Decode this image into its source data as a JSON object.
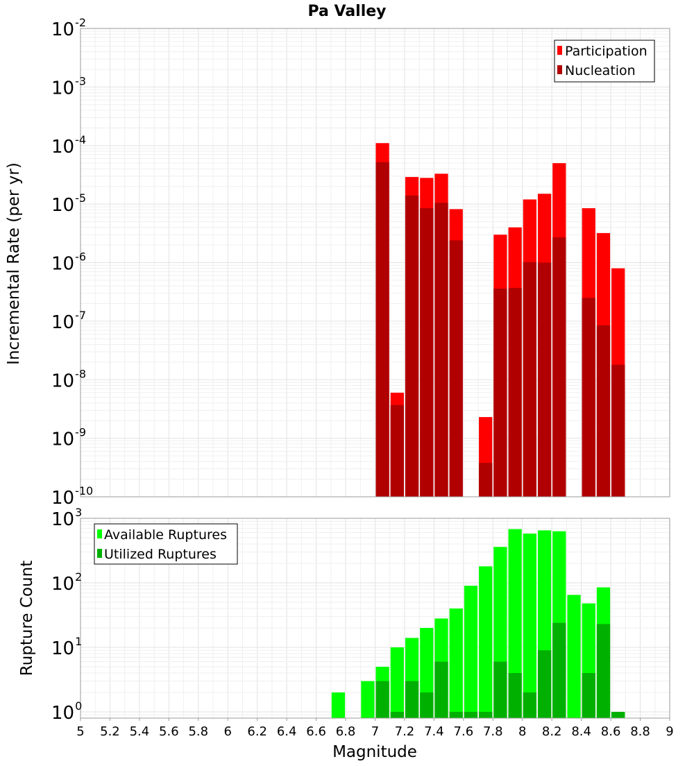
{
  "title": "Pa Valley",
  "colors": {
    "participation": "#ff0000",
    "nucleation": "#b00000",
    "available": "#00ff00",
    "utilized": "#00b000"
  },
  "chart_data": [
    {
      "type": "bar",
      "scale": "log",
      "xlabel": "Magnitude",
      "ylabel": "Incremental Rate (per yr)",
      "xlim": [
        5,
        9
      ],
      "ylim": [
        1e-10,
        0.01
      ],
      "ytick_exponents": [
        "-10",
        "-9",
        "-8",
        "-7",
        "-6",
        "-5",
        "-4",
        "-3",
        "-2"
      ],
      "legend_position": "top-right",
      "bin_width": 0.1,
      "x": [
        7.05,
        7.15,
        7.25,
        7.35,
        7.45,
        7.55,
        7.75,
        7.85,
        7.95,
        8.05,
        8.15,
        8.25,
        8.45,
        8.55,
        8.65
      ],
      "series": [
        {
          "name": "Participation",
          "values": [
            0.00011,
            6e-09,
            2.9e-05,
            2.8e-05,
            3.3e-05,
            8.2e-06,
            2.3e-09,
            3e-06,
            4e-06,
            1.2e-05,
            1.5e-05,
            5e-05,
            8.5e-06,
            3.2e-06,
            8e-07
          ]
        },
        {
          "name": "Nucleation",
          "values": [
            5.2e-05,
            3.7e-09,
            1.4e-05,
            8.5e-06,
            1.05e-05,
            2.4e-06,
            3.8e-10,
            3.6e-07,
            3.7e-07,
            1.02e-06,
            1e-06,
            2.7e-06,
            2.5e-07,
            8.5e-08,
            1.8e-08
          ]
        }
      ]
    },
    {
      "type": "bar",
      "scale": "log",
      "xlabel": "Magnitude",
      "ylabel": "Rupture Count",
      "xlim": [
        5,
        9
      ],
      "ylim": [
        0.8,
        1000
      ],
      "ytick_exponents": [
        "0",
        "1",
        "2",
        "3"
      ],
      "xtick_labels": [
        "5",
        "5.2",
        "5.4",
        "5.6",
        "5.8",
        "6",
        "6.2",
        "6.4",
        "6.6",
        "6.8",
        "7",
        "7.2",
        "7.4",
        "7.6",
        "7.8",
        "8",
        "8.2",
        "8.4",
        "8.6",
        "8.8",
        "9"
      ],
      "legend_position": "top-left",
      "bin_width": 0.1,
      "x": [
        6.75,
        6.95,
        7.05,
        7.15,
        7.25,
        7.35,
        7.45,
        7.55,
        7.65,
        7.75,
        7.85,
        7.95,
        8.05,
        8.15,
        8.25,
        8.35,
        8.45,
        8.55,
        8.65
      ],
      "series": [
        {
          "name": "Available Ruptures",
          "values": [
            2,
            3,
            5,
            10,
            14,
            20,
            28,
            40,
            90,
            180,
            360,
            680,
            580,
            650,
            630,
            65,
            48,
            85,
            1
          ]
        },
        {
          "name": "Utilized Ruptures",
          "values": [
            0,
            0,
            3,
            1,
            3,
            2,
            6,
            1,
            1,
            1,
            6,
            4,
            2,
            9,
            24,
            0,
            4,
            23,
            1
          ]
        }
      ]
    }
  ]
}
